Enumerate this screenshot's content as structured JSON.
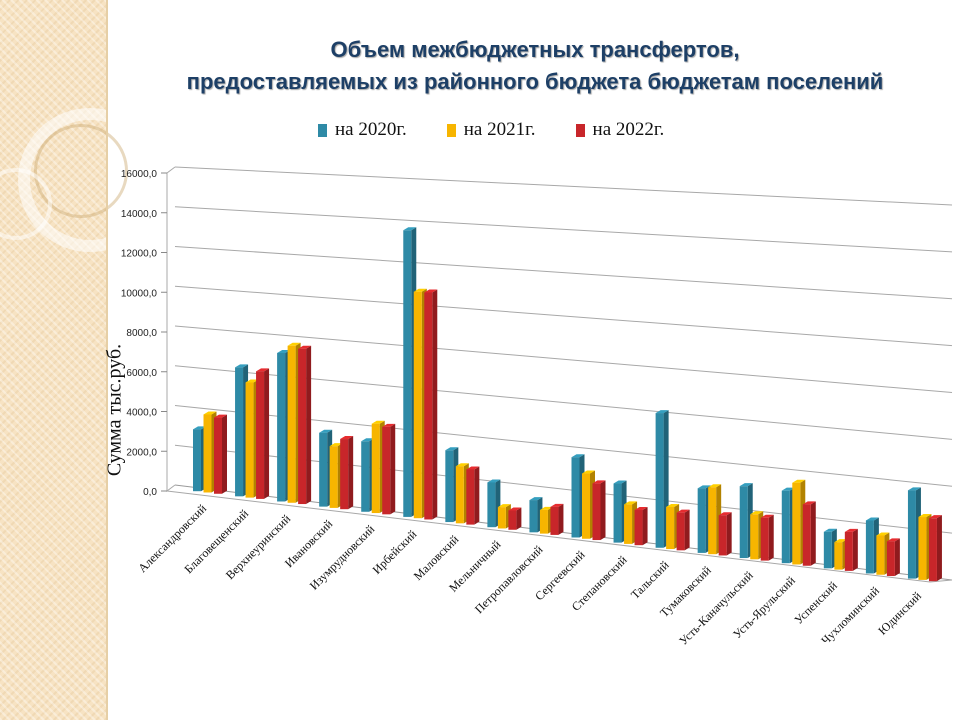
{
  "title_line1": "Объем межбюджетных трансфертов,",
  "title_line2": "предоставляемых из районного бюджета  бюджетам поселений",
  "colors": {
    "s2020": "#2e8aa6",
    "s2021": "#f7b500",
    "s2022": "#c8262a"
  },
  "chart_data": {
    "type": "bar",
    "title": "Объем межбюджетных трансфертов, предоставляемых из районного бюджета  бюджетам поселений",
    "xlabel": "",
    "ylabel": "Сумма  тыс.руб.",
    "ylim": [
      0,
      16000
    ],
    "yticks": [
      "0,0",
      "2000,0",
      "4000,0",
      "6000,0",
      "8000,0",
      "10000,0",
      "12000,0",
      "14000,0",
      "16000,0"
    ],
    "legend_position": "top",
    "categories": [
      "Александровский",
      "Благовещенский",
      "Верхнеуринский",
      "Ивановский",
      "Изумрудновский",
      "Ирбейский",
      "Маловский",
      "Мельничный",
      "Петропавловский",
      "Сергеевский",
      "Степановский",
      "Тальский",
      "Тумаковский",
      "Усть-Каначульский",
      "Усть-Ярульский",
      "Успенский",
      "Чухломинский",
      "Юдинский"
    ],
    "series": [
      {
        "name": "на 2020г.",
        "values": [
          3100,
          6400,
          7300,
          3600,
          3400,
          13700,
          3400,
          2100,
          1500,
          3700,
          2700,
          6100,
          2900,
          3200,
          3200,
          1600,
          2300,
          3800
        ]
      },
      {
        "name": "на 2021г.",
        "values": [
          3900,
          5700,
          7700,
          3000,
          4300,
          10800,
          2700,
          1000,
          1100,
          3000,
          1800,
          1900,
          3000,
          2000,
          3600,
          1200,
          1700,
          2700
        ]
      },
      {
        "name": "на 2022г.",
        "values": [
          3800,
          6300,
          7600,
          3400,
          4200,
          10800,
          2600,
          900,
          1300,
          2600,
          1600,
          1700,
          1800,
          1900,
          2700,
          1700,
          1500,
          2700
        ]
      }
    ]
  }
}
